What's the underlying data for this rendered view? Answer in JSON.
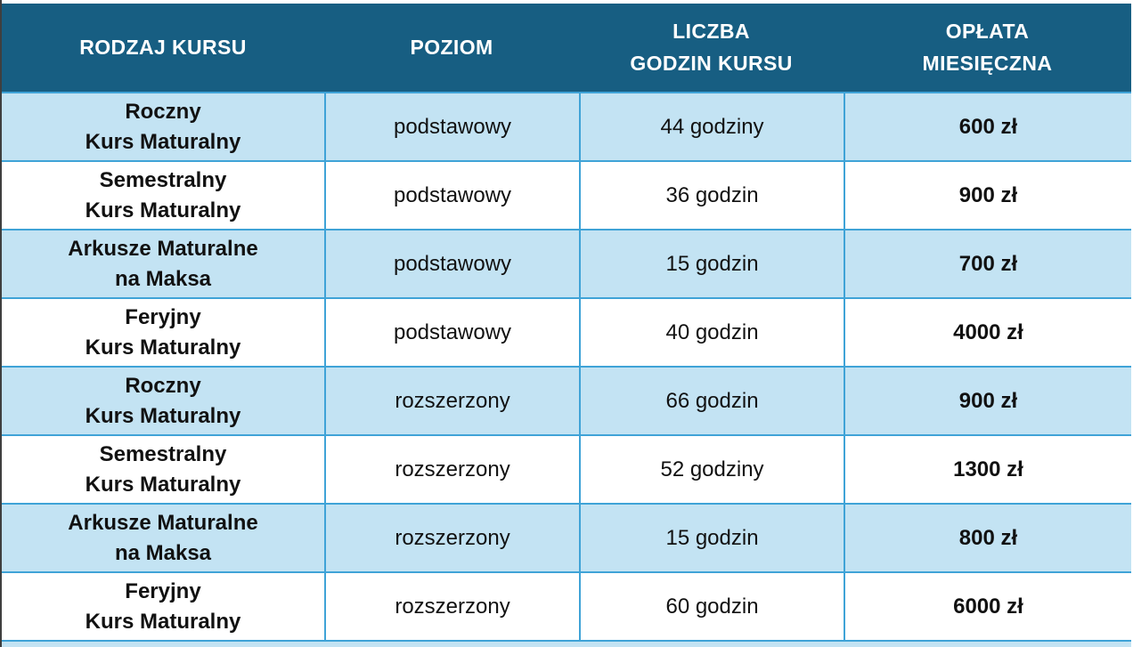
{
  "colors": {
    "header_bg": "#175e82",
    "header_text": "#ffffff",
    "row_alt_bg": "#c3e3f3",
    "row_bg": "#ffffff",
    "border": "#3fa3d7",
    "text": "#111111"
  },
  "table": {
    "columns": [
      {
        "label": "RODZAJ KURSU"
      },
      {
        "label": "POZIOM"
      },
      {
        "label": "LICZBA\nGODZIN KURSU"
      },
      {
        "label": "OPŁATA\nMIESIĘCZNA"
      }
    ],
    "rows": [
      {
        "course": "Roczny\nKurs Maturalny",
        "level": "podstawowy",
        "hours": "44 godziny",
        "fee": "600 zł"
      },
      {
        "course": "Semestralny\nKurs Maturalny",
        "level": "podstawowy",
        "hours": "36 godzin",
        "fee": "900 zł"
      },
      {
        "course": "Arkusze Maturalne\nna Maksa",
        "level": "podstawowy",
        "hours": "15 godzin",
        "fee": "700 zł"
      },
      {
        "course": "Feryjny\nKurs Maturalny",
        "level": "podstawowy",
        "hours": "40 godzin",
        "fee": "4000 zł"
      },
      {
        "course": "Roczny\nKurs Maturalny",
        "level": "rozszerzony",
        "hours": "66 godzin",
        "fee": "900 zł"
      },
      {
        "course": "Semestralny\nKurs Maturalny",
        "level": "rozszerzony",
        "hours": "52 godziny",
        "fee": "1300 zł"
      },
      {
        "course": "Arkusze Maturalne\nna Maksa",
        "level": "rozszerzony",
        "hours": "15 godzin",
        "fee": "800 zł"
      },
      {
        "course": "Feryjny\nKurs Maturalny",
        "level": "rozszerzony",
        "hours": "60 godzin",
        "fee": "6000 zł"
      }
    ]
  }
}
